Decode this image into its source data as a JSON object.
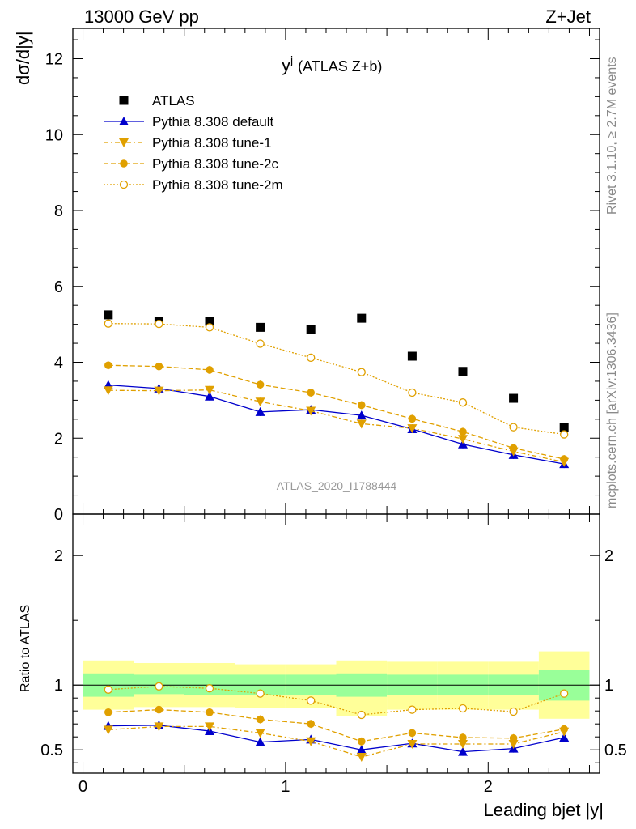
{
  "header": {
    "energy_label": "13000 GeV pp",
    "process_label": "Z+Jet",
    "plot_title_main": "y",
    "plot_title_sup": "j",
    "plot_title_sub": "(ATLAS Z+b)",
    "analysis_id": "ATLAS_2020_I1788444",
    "side_rivet": "Rivet 3.1.10, ≥ 2.7M events",
    "side_mcplots": "mcplots.cern.ch [arXiv:1306.3436]"
  },
  "colors": {
    "data": "#000000",
    "default": "#0000cc",
    "tune": "#e0a000",
    "band_inner": "#99ff99",
    "band_outer": "#ffff99"
  },
  "chart_data": [
    {
      "type": "scatter",
      "title": "",
      "xlabel": "Leading bjet |y|",
      "ylabel": "dσ/d|y|",
      "xlim": [
        -0.05,
        2.55
      ],
      "ylim": [
        0,
        12.8
      ],
      "x_ticks": [
        0,
        1,
        2
      ],
      "y_ticks": [
        0,
        2,
        4,
        6,
        8,
        10,
        12
      ],
      "legend_position": "top-left",
      "bin_edges": [
        0,
        0.25,
        0.5,
        0.75,
        1.0,
        1.25,
        1.5,
        1.75,
        2.0,
        2.25,
        2.5
      ],
      "x": [
        0.125,
        0.375,
        0.625,
        0.875,
        1.125,
        1.375,
        1.625,
        1.875,
        2.125,
        2.375
      ],
      "series": [
        {
          "name": "ATLAS",
          "key": "atlas",
          "values": [
            5.25,
            5.08,
            5.08,
            4.92,
            4.86,
            5.16,
            4.16,
            3.76,
            3.05,
            2.29
          ]
        },
        {
          "name": "Pythia 8.308 default",
          "key": "default",
          "values": [
            3.4,
            3.31,
            3.1,
            2.69,
            2.75,
            2.6,
            2.24,
            1.84,
            1.56,
            1.32
          ]
        },
        {
          "name": "Pythia 8.308 tune-1",
          "key": "tune1",
          "values": [
            3.26,
            3.25,
            3.27,
            2.96,
            2.72,
            2.38,
            2.26,
            1.98,
            1.65,
            1.37
          ]
        },
        {
          "name": "Pythia 8.308 tune-2c",
          "key": "tune2c",
          "values": [
            3.92,
            3.89,
            3.8,
            3.41,
            3.2,
            2.87,
            2.51,
            2.17,
            1.74,
            1.45
          ]
        },
        {
          "name": "Pythia 8.308 tune-2m",
          "key": "tune2m",
          "values": [
            5.02,
            5.01,
            4.92,
            4.49,
            4.12,
            3.74,
            3.2,
            2.94,
            2.29,
            2.1
          ]
        }
      ]
    },
    {
      "type": "scatter",
      "title": "",
      "xlabel": "Leading bjet |y|",
      "ylabel": "Ratio to ATLAS",
      "xlim": [
        -0.05,
        2.55
      ],
      "ylim": [
        0.32,
        2.32
      ],
      "x_ticks": [
        0,
        1,
        2
      ],
      "y_ticks": [
        0.5,
        1,
        2
      ],
      "bin_edges": [
        0,
        0.25,
        0.5,
        0.75,
        1.0,
        1.25,
        1.5,
        1.75,
        2.0,
        2.25,
        2.5
      ],
      "x": [
        0.125,
        0.375,
        0.625,
        0.875,
        1.125,
        1.375,
        1.625,
        1.875,
        2.125,
        2.375
      ],
      "band_inner": {
        "low": [
          0.91,
          0.93,
          0.92,
          0.92,
          0.92,
          0.91,
          0.92,
          0.92,
          0.92,
          0.88
        ],
        "high": [
          1.09,
          1.08,
          1.08,
          1.08,
          1.08,
          1.09,
          1.08,
          1.08,
          1.08,
          1.12
        ]
      },
      "band_outer": {
        "low": [
          0.81,
          0.83,
          0.83,
          0.82,
          0.82,
          0.76,
          0.81,
          0.81,
          0.81,
          0.74
        ],
        "high": [
          1.19,
          1.17,
          1.17,
          1.16,
          1.16,
          1.19,
          1.18,
          1.18,
          1.18,
          1.26
        ]
      },
      "series": [
        {
          "name": "Pythia 8.308 default",
          "key": "default",
          "values": [
            0.685,
            0.69,
            0.645,
            0.56,
            0.58,
            0.5,
            0.55,
            0.485,
            0.51,
            0.595
          ]
        },
        {
          "name": "Pythia 8.308 tune-1",
          "key": "tune1",
          "values": [
            0.655,
            0.68,
            0.68,
            0.63,
            0.565,
            0.445,
            0.545,
            0.545,
            0.545,
            0.64
          ]
        },
        {
          "name": "Pythia 8.308 tune-2c",
          "key": "tune2c",
          "values": [
            0.79,
            0.81,
            0.79,
            0.735,
            0.7,
            0.565,
            0.63,
            0.595,
            0.59,
            0.66
          ]
        },
        {
          "name": "Pythia 8.308 tune-2m",
          "key": "tune2m",
          "values": [
            0.965,
            0.99,
            0.975,
            0.935,
            0.88,
            0.77,
            0.81,
            0.82,
            0.795,
            0.935
          ]
        }
      ]
    }
  ]
}
